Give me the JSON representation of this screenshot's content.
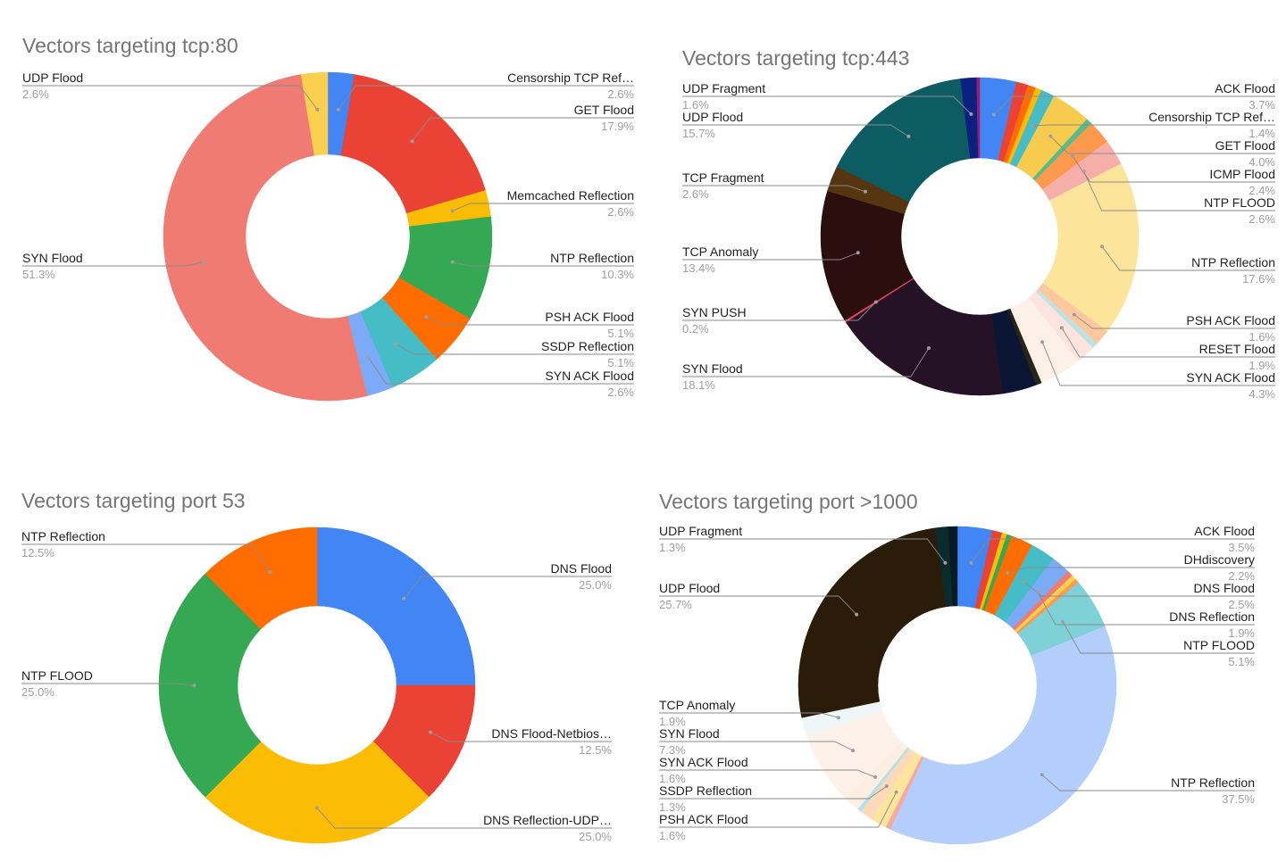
{
  "chart_data": [
    {
      "type": "pie",
      "donut": true,
      "title": "Vectors targeting tcp:80",
      "slices": [
        {
          "label": "Censorship TCP Ref…",
          "value": 2.6,
          "display": "2.6%",
          "color": "#4285f4"
        },
        {
          "label": "GET Flood",
          "value": 17.9,
          "display": "17.9%",
          "color": "#ea4335"
        },
        {
          "label": "Memcached Reflection",
          "value": 2.6,
          "display": "2.6%",
          "color": "#fbbc04"
        },
        {
          "label": "NTP Reflection",
          "value": 10.3,
          "display": "10.3%",
          "color": "#34a853"
        },
        {
          "label": "PSH ACK Flood",
          "value": 5.1,
          "display": "5.1%",
          "color": "#ff6d01"
        },
        {
          "label": "SSDP Reflection",
          "value": 5.1,
          "display": "5.1%",
          "color": "#46bdc6"
        },
        {
          "label": "SYN ACK Flood",
          "value": 2.6,
          "display": "2.6%",
          "color": "#7baaf7"
        },
        {
          "label": "SYN Flood",
          "value": 51.3,
          "display": "51.3%",
          "color": "#f07b72"
        },
        {
          "label": "UDP Flood",
          "value": 2.6,
          "display": "2.6%",
          "color": "#fcd04f"
        }
      ]
    },
    {
      "type": "pie",
      "donut": true,
      "title": "Vectors targeting tcp:443",
      "slices": [
        {
          "label": "ACK Flood",
          "value": 3.7,
          "display": "3.7%",
          "color": "#4285f4"
        },
        {
          "label": "",
          "value": 1.2,
          "display": "",
          "color": "#ea4335"
        },
        {
          "label": "",
          "value": 0.8,
          "display": "",
          "color": "#ff6d01"
        },
        {
          "label": "",
          "value": 0.6,
          "display": "",
          "color": "#fbbc04"
        },
        {
          "label": "Censorship TCP Ref…",
          "value": 1.4,
          "display": "1.4%",
          "color": "#46bdc6"
        },
        {
          "label": "GET Flood",
          "value": 4.0,
          "display": "4.0%",
          "color": "#f7cb4d"
        },
        {
          "label": "",
          "value": 0.6,
          "display": "",
          "color": "#57bb8a"
        },
        {
          "label": "ICMP Flood",
          "value": 2.4,
          "display": "2.4%",
          "color": "#ff994d"
        },
        {
          "label": "NTP FLOOD",
          "value": 2.6,
          "display": "2.6%",
          "color": "#f6aea9"
        },
        {
          "label": "NTP Reflection",
          "value": 17.6,
          "display": "17.6%",
          "color": "#fde49b"
        },
        {
          "label": "PSH ACK Flood",
          "value": 1.6,
          "display": "1.6%",
          "color": "#fcc99f"
        },
        {
          "label": "",
          "value": 0.6,
          "display": "",
          "color": "#bde2e6"
        },
        {
          "label": "RESET Flood",
          "value": 1.9,
          "display": "1.9%",
          "color": "#fde3de"
        },
        {
          "label": "SYN ACK Flood",
          "value": 4.3,
          "display": "4.3%",
          "color": "#fdf0e6"
        },
        {
          "label": "",
          "value": 0.6,
          "display": "",
          "color": "#272418"
        },
        {
          "label": "",
          "value": 3.4,
          "display": "",
          "color": "#0b1634"
        },
        {
          "label": "SYN Flood",
          "value": 18.1,
          "display": "18.1%",
          "color": "#261226"
        },
        {
          "label": "SYN PUSH",
          "value": 0.2,
          "display": "0.2%",
          "color": "#e8445a"
        },
        {
          "label": "TCP Anomaly",
          "value": 13.4,
          "display": "13.4%",
          "color": "#2a0f0e"
        },
        {
          "label": "TCP Fragment",
          "value": 2.6,
          "display": "2.6%",
          "color": "#553610"
        },
        {
          "label": "UDP Flood",
          "value": 15.7,
          "display": "15.7%",
          "color": "#0d5c63"
        },
        {
          "label": "UDP Fragment",
          "value": 1.6,
          "display": "1.6%",
          "color": "#0c2080"
        },
        {
          "label": "",
          "value": 0.3,
          "display": "",
          "color": "#9e1b6b"
        }
      ]
    },
    {
      "type": "pie",
      "donut": true,
      "title": "Vectors targeting port 53",
      "slices": [
        {
          "label": "DNS Flood",
          "value": 25.0,
          "display": "25.0%",
          "color": "#4285f4"
        },
        {
          "label": "DNS Flood-Netbios…",
          "value": 12.5,
          "display": "12.5%",
          "color": "#ea4335"
        },
        {
          "label": "DNS Reflection-UDP…",
          "value": 25.0,
          "display": "25.0%",
          "color": "#fbbc04"
        },
        {
          "label": "NTP FLOOD",
          "value": 25.0,
          "display": "25.0%",
          "color": "#34a853"
        },
        {
          "label": "NTP Reflection",
          "value": 12.5,
          "display": "12.5%",
          "color": "#ff6d01"
        }
      ]
    },
    {
      "type": "pie",
      "donut": true,
      "title": "Vectors targeting port >1000",
      "slices": [
        {
          "label": "ACK Flood",
          "value": 3.5,
          "display": "3.5%",
          "color": "#4285f4"
        },
        {
          "label": "",
          "value": 1.0,
          "display": "",
          "color": "#ea4335"
        },
        {
          "label": "",
          "value": 0.5,
          "display": "",
          "color": "#fbbc04"
        },
        {
          "label": "",
          "value": 0.5,
          "display": "",
          "color": "#34a853"
        },
        {
          "label": "DHdiscovery",
          "value": 2.2,
          "display": "2.2%",
          "color": "#ff6d01"
        },
        {
          "label": "DNS Flood",
          "value": 2.5,
          "display": "2.5%",
          "color": "#46bdc6"
        },
        {
          "label": "DNS Reflection",
          "value": 1.9,
          "display": "1.9%",
          "color": "#7baaf7"
        },
        {
          "label": "",
          "value": 0.6,
          "display": "",
          "color": "#f07b72"
        },
        {
          "label": "",
          "value": 0.5,
          "display": "",
          "color": "#fcd04f"
        },
        {
          "label": "",
          "value": 0.4,
          "display": "",
          "color": "#ff994d"
        },
        {
          "label": "NTP FLOOD",
          "value": 5.1,
          "display": "5.1%",
          "color": "#7ed1d7"
        },
        {
          "label": "NTP Reflection",
          "value": 37.5,
          "display": "37.5%",
          "color": "#b3cefb"
        },
        {
          "label": "",
          "value": 0.5,
          "display": "",
          "color": "#f7a7a1"
        },
        {
          "label": "PSH ACK Flood",
          "value": 1.6,
          "display": "1.6%",
          "color": "#fde49b"
        },
        {
          "label": "SSDP Reflection",
          "value": 1.3,
          "display": "1.3%",
          "color": "#fdd9bc"
        },
        {
          "label": "",
          "value": 0.4,
          "display": "",
          "color": "#b6e1e4"
        },
        {
          "label": "SYN ACK Flood",
          "value": 1.6,
          "display": "1.6%",
          "color": "#fceee2"
        },
        {
          "label": "SYN Flood",
          "value": 7.3,
          "display": "7.3%",
          "color": "#fdf1ea"
        },
        {
          "label": "TCP Anomaly",
          "value": 1.9,
          "display": "1.9%",
          "color": "#eef6f8"
        },
        {
          "label": "UDP Flood",
          "value": 25.7,
          "display": "25.7%",
          "color": "#2a1c08"
        },
        {
          "label": "UDP Fragment",
          "value": 1.3,
          "display": "1.3%",
          "color": "#0b2b2f"
        },
        {
          "label": "",
          "value": 0.9,
          "display": "",
          "color": "#081a24"
        }
      ]
    }
  ]
}
